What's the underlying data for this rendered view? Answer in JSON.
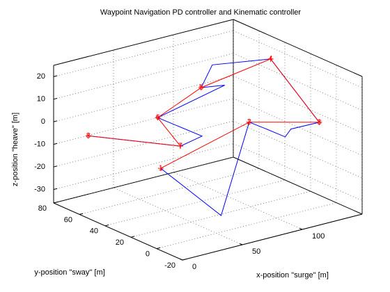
{
  "chart_data": {
    "type": "line3d",
    "title": "Waypoint Navigation PD controller and Kinematic controller",
    "xlabel": "x-position \"surge\"  [m]",
    "ylabel": "y-position \"sway\"  [m]",
    "zlabel": "z-position \"heave\"  [m]",
    "xlim": [
      0,
      150
    ],
    "ylim": [
      -20,
      80
    ],
    "zlim": [
      -36,
      25
    ],
    "xticks": [
      0,
      50,
      100
    ],
    "yticks": [
      -20,
      0,
      20,
      40,
      60,
      80
    ],
    "zticks": [
      -30,
      -20,
      -10,
      0,
      10,
      20
    ],
    "grid": true,
    "series": [
      {
        "color": "#ff0000",
        "marker": "+",
        "x": [
          55,
          103,
          140,
          136,
          92,
          60,
          65,
          15
        ],
        "y": [
          48,
          24,
          4,
          38,
          51,
          55,
          42,
          67
        ],
        "z": [
          -20,
          0,
          0,
          20,
          10,
          0,
          -10,
          -5
        ],
        "point_labels": [
          "1",
          "2",
          "3",
          "4",
          "5",
          "6",
          "7",
          "8"
        ]
      },
      {
        "color": "#0000ff",
        "x": [
          55,
          71,
          103,
          112,
          118,
          125,
          140,
          136,
          98,
          92,
          102,
          60,
          83,
          65,
          15
        ],
        "y": [
          48,
          16,
          24,
          20,
          10,
          12,
          4,
          38,
          48,
          51,
          42,
          55,
          42,
          42,
          67
        ],
        "z": [
          -20,
          -35,
          0,
          -3,
          -5,
          -3,
          0,
          20,
          20,
          10,
          12,
          0,
          -8,
          -10,
          -5
        ]
      }
    ]
  }
}
